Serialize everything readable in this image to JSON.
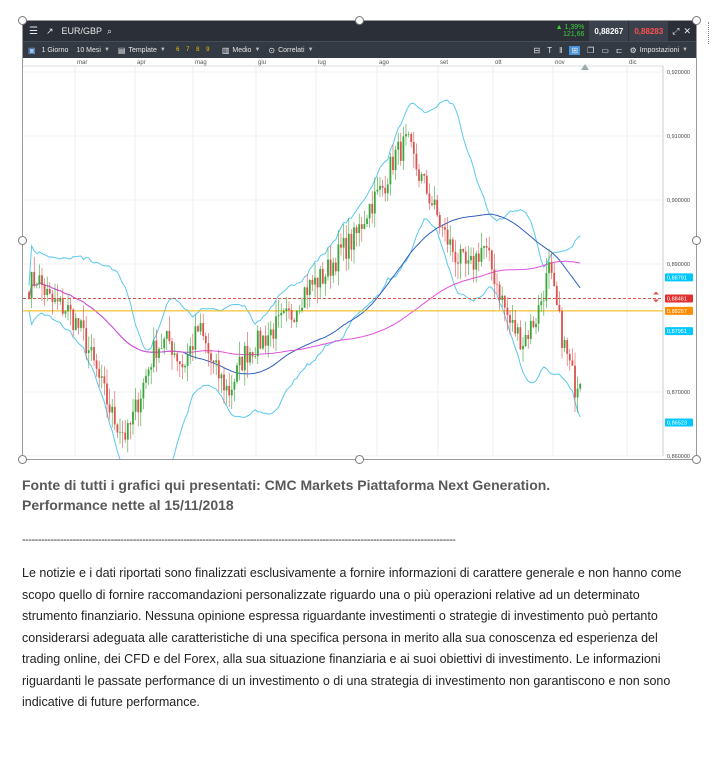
{
  "chart_window": {
    "symbol": "EUR/GBP",
    "change_pct": "▲ 1,39%",
    "change_pts": "121,66",
    "bid": "0,88267",
    "ask": "0,88283",
    "toolbar": {
      "interval": "1 Giorno",
      "range": "10 Mesi",
      "template": "Template",
      "presets": [
        "6",
        "7",
        "8",
        "9"
      ],
      "indicator": "Medio",
      "correlate": "Correlati",
      "settings": "Impostazioni"
    },
    "colors": {
      "topbar": "#2b3038",
      "toolbar": "#343a44",
      "up_candle": "#3aa53a",
      "down_candle": "#d9534f",
      "bollinger": "#5bc8ef",
      "ma_fast": "#2f5fbf",
      "ma_slow": "#e050e0",
      "support_line": "#f2b400",
      "resistance_line": "#d9534f"
    }
  },
  "chart_data": {
    "type": "candlestick",
    "months": [
      "mar",
      "apr",
      "mag",
      "giu",
      "lug",
      "ago",
      "set",
      "ott",
      "nov",
      "dic"
    ],
    "y_ticks": [
      "0,920000",
      "0,910000",
      "0,900000",
      "0,890000",
      "0,870000",
      "0,860000"
    ],
    "ylim": [
      0.86,
      0.92
    ],
    "price_tags": [
      {
        "label": "0,88791",
        "value": 0.88791,
        "color": "#00c8ff"
      },
      {
        "label": "0,88461",
        "value": 0.88461,
        "color": "#e03030"
      },
      {
        "label": "0,88267",
        "value": 0.88267,
        "color": "#ff8c00"
      },
      {
        "label": "0,87951",
        "value": 0.87951,
        "color": "#00c8ff"
      },
      {
        "label": "0,86523",
        "value": 0.86523,
        "color": "#00c8ff"
      }
    ],
    "horizontal_lines": [
      {
        "value": 0.88461,
        "style": "dashed",
        "color": "#d9534f"
      },
      {
        "value": 0.88267,
        "style": "solid",
        "color": "#f2b400"
      }
    ]
  },
  "caption": {
    "line1": "Fonte di tutti i grafici qui presentati: CMC Markets Piattaforma Next Generation.",
    "line2": "Performance nette al 15/11/2018"
  },
  "separator": "-----------------------------------------------------------------------------------------------------------------------------------------",
  "disclaimer": "Le notizie e i dati riportati sono finalizzati esclusivamente a fornire informazioni di carattere generale e non hanno come scopo quello di fornire raccomandazioni personalizzate riguardo una o più operazioni relative ad un determinato strumento finanziario. Nessuna opinione espressa riguardante investimenti o strategie di investimento può pertanto considerarsi adeguata alle caratteristiche di una specifica persona in merito alla sua conoscenza ed esperienza del trading online, dei CFD e del Forex, alla sua situazione finanziaria e ai suoi obiettivi di investimento. Le informazioni riguardanti le passate performance di un investimento o di una strategia di investimento non garantiscono e non sono indicative di future performance."
}
